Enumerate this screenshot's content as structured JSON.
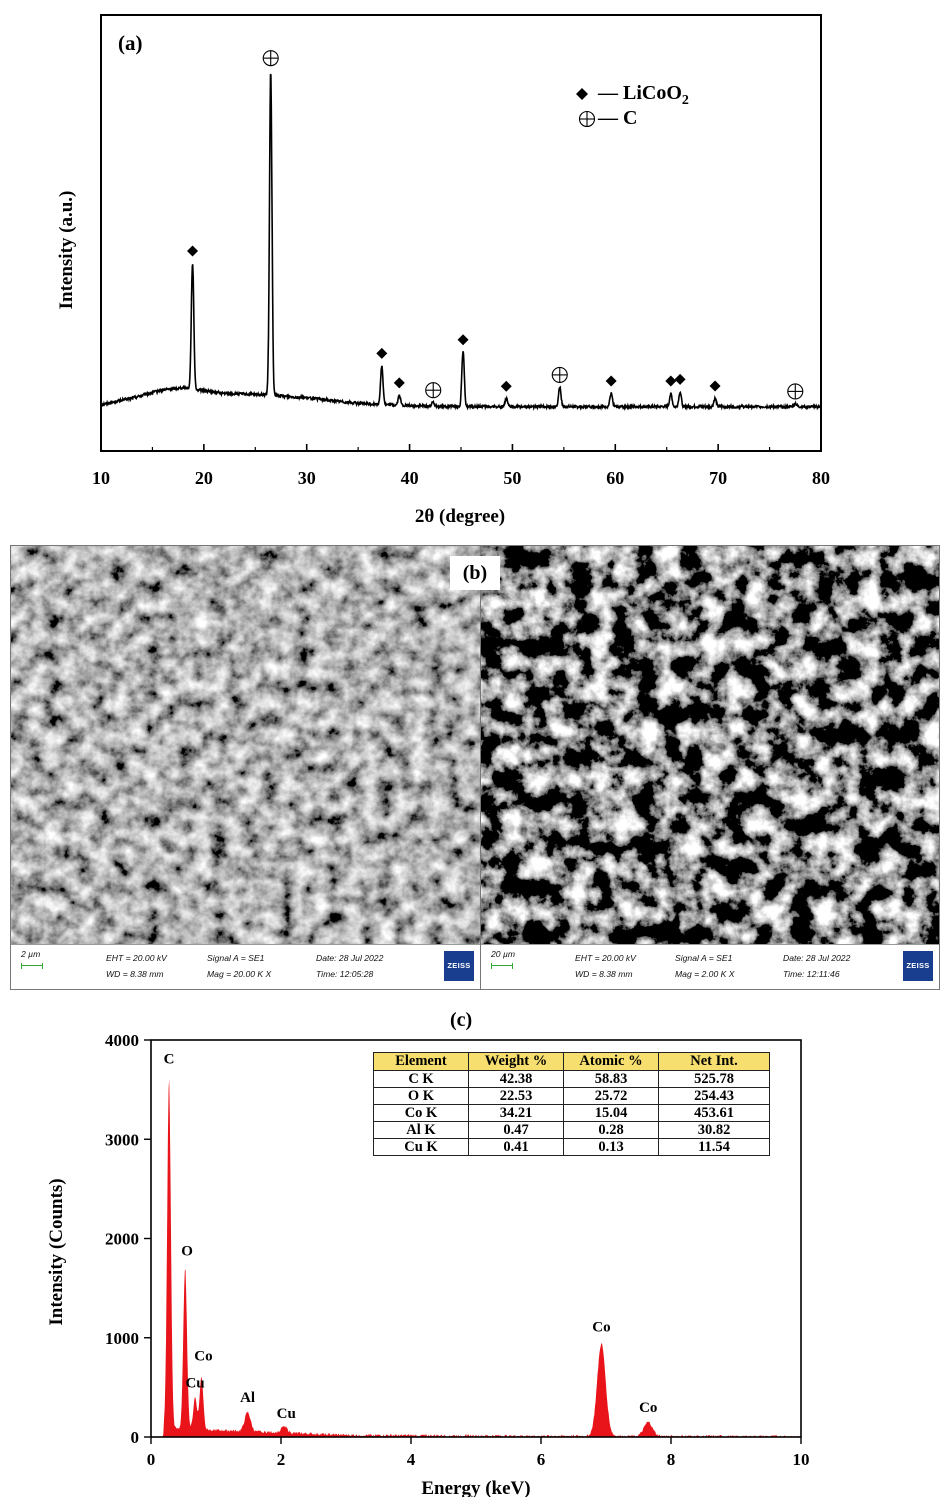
{
  "panels": {
    "a": "(a)",
    "b": "(b)",
    "c": "(c)"
  },
  "chart_data": [
    {
      "type": "line",
      "panel": "(a)",
      "xlabel": "2θ (degree)",
      "ylabel": "Intensity (a.u.)",
      "xlim": [
        10,
        80
      ],
      "xticks": [
        10,
        20,
        30,
        40,
        50,
        60,
        70,
        80
      ],
      "yticks": [],
      "line_color": "#000000",
      "legend": {
        "placement": "top-right",
        "entries": [
          {
            "marker": "diamond",
            "label": "— LiCoO",
            "subscript": "2"
          },
          {
            "marker": "circle-plus",
            "label": "— C",
            "subscript": ""
          }
        ]
      },
      "background_points": [
        [
          10,
          0.016
        ],
        [
          13,
          0.036
        ],
        [
          16,
          0.061
        ],
        [
          18,
          0.068
        ],
        [
          22,
          0.05
        ],
        [
          26,
          0.046
        ],
        [
          30,
          0.037
        ],
        [
          35,
          0.02
        ],
        [
          40,
          0.013
        ],
        [
          45,
          0.01
        ],
        [
          50,
          0.01
        ],
        [
          60,
          0.01
        ],
        [
          70,
          0.01
        ],
        [
          80,
          0.01
        ]
      ],
      "peaks": [
        {
          "x": 18.9,
          "height": 0.38,
          "marker": "diamond"
        },
        {
          "x": 26.5,
          "height": 0.985,
          "marker": "circle-plus"
        },
        {
          "x": 37.3,
          "height": 0.117,
          "marker": "diamond"
        },
        {
          "x": 39.0,
          "height": 0.03,
          "marker": "diamond"
        },
        {
          "x": 42.3,
          "height": 0.012,
          "marker": "circle-plus"
        },
        {
          "x": 45.2,
          "height": 0.165,
          "marker": "diamond"
        },
        {
          "x": 49.4,
          "height": 0.024,
          "marker": "diamond"
        },
        {
          "x": 54.6,
          "height": 0.06,
          "marker": "circle-plus"
        },
        {
          "x": 59.6,
          "height": 0.04,
          "marker": "diamond"
        },
        {
          "x": 65.4,
          "height": 0.04,
          "marker": "diamond"
        },
        {
          "x": 66.3,
          "height": 0.045,
          "marker": "diamond"
        },
        {
          "x": 69.7,
          "height": 0.025,
          "marker": "diamond"
        },
        {
          "x": 77.5,
          "height": 0.01,
          "marker": "circle-plus"
        }
      ]
    },
    {
      "type": "area",
      "panel": "(c)",
      "xlabel": "Energy (keV)",
      "ylabel": "Intensity (Counts)",
      "xlim": [
        0,
        10
      ],
      "ylim": [
        0,
        4000
      ],
      "xticks": [
        0,
        2,
        4,
        6,
        8,
        10
      ],
      "yticks": [
        0,
        1000,
        2000,
        3000,
        4000
      ],
      "fill_color": "#e8141a",
      "peaks": [
        {
          "x": 0.277,
          "y": 3620,
          "label": "C"
        },
        {
          "x": 0.525,
          "y": 1710,
          "label": "O"
        },
        {
          "x": 0.678,
          "y": 400,
          "label": "Cu"
        },
        {
          "x": 0.776,
          "y": 610,
          "label": "Co"
        },
        {
          "x": 1.486,
          "y": 250,
          "label": "Al"
        },
        {
          "x": 2.05,
          "y": 110,
          "label": "Cu"
        },
        {
          "x": 6.93,
          "y": 940,
          "label": "Co"
        },
        {
          "x": 7.65,
          "y": 150,
          "label": "Co"
        }
      ]
    }
  ],
  "sem": {
    "left": {
      "scale": "2 µm",
      "eht": "EHT = 20.00 kV",
      "wd": "WD = 8.38 mm",
      "signal": "Signal A = SE1",
      "mag": "Mag =   20.00 K X",
      "date": "Date: 28 Jul 2022",
      "time": "Time: 12:05:28",
      "logo": "ZEISS"
    },
    "right": {
      "scale": "20 µm",
      "eht": "EHT = 20.00 kV",
      "wd": "WD = 8.38 mm",
      "signal": "Signal A = SE1",
      "mag": "Mag =    2.00 K X",
      "date": "Date: 28 Jul 2022",
      "time": "Time: 12:11:46",
      "logo": "ZEISS"
    }
  },
  "eds_table": {
    "header_color": "#f6df6e",
    "headers": [
      "Element",
      "Weight %",
      "Atomic %",
      "Net Int."
    ],
    "rows": [
      [
        "C K",
        "42.38",
        "58.83",
        "525.78"
      ],
      [
        "O K",
        "22.53",
        "25.72",
        "254.43"
      ],
      [
        "Co K",
        "34.21",
        "15.04",
        "453.61"
      ],
      [
        "Al K",
        "0.47",
        "0.28",
        "30.82"
      ],
      [
        "Cu K",
        "0.41",
        "0.13",
        "11.54"
      ]
    ]
  }
}
